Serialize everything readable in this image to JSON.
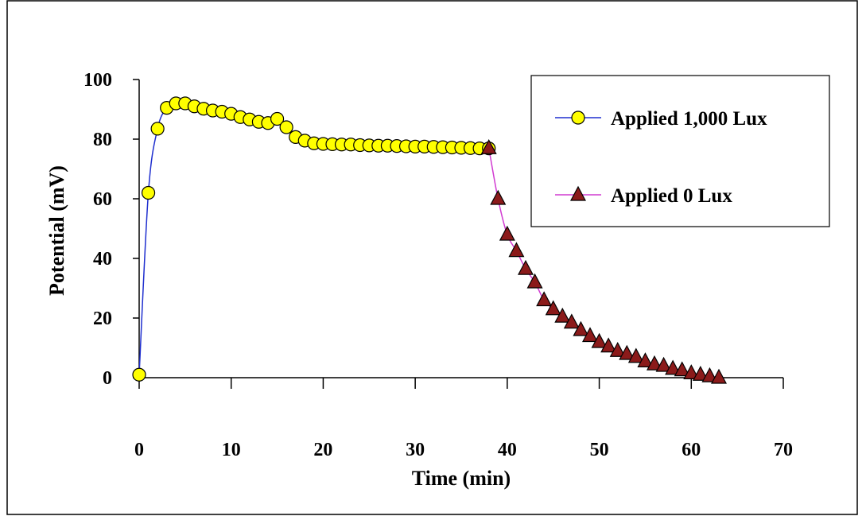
{
  "chart_data": {
    "type": "line",
    "xlabel": "Time (min)",
    "ylabel": "Potential (mV)",
    "xlim": [
      0,
      70
    ],
    "ylim": [
      0,
      100
    ],
    "xticks": [
      "0",
      "10",
      "20",
      "30",
      "40",
      "50",
      "60",
      "70"
    ],
    "yticks": [
      "0",
      "20",
      "40",
      "60",
      "80",
      "100"
    ],
    "grid": false,
    "legend_position": "top-right",
    "series": [
      {
        "name": "Applied 1,000 Lux",
        "marker": "circle",
        "line_color": "#1f2fcf",
        "marker_fill": "#ffff00",
        "marker_stroke": "#000000",
        "x": [
          0,
          1,
          2,
          3,
          4,
          5,
          6,
          7,
          8,
          9,
          10,
          11,
          12,
          13,
          14,
          15,
          16,
          17,
          18,
          19,
          20,
          21,
          22,
          23,
          24,
          25,
          26,
          27,
          28,
          29,
          30,
          31,
          32,
          33,
          34,
          35,
          36,
          37,
          38
        ],
        "y": [
          1,
          62,
          83.5,
          90.5,
          92,
          92,
          91,
          90.2,
          89.6,
          89.2,
          88.5,
          87.4,
          86.6,
          85.8,
          85.4,
          86.8,
          84,
          80.7,
          79.5,
          78.6,
          78.4,
          78.3,
          78.2,
          78.2,
          78,
          77.9,
          77.8,
          77.8,
          77.7,
          77.6,
          77.5,
          77.5,
          77.4,
          77.3,
          77.2,
          77.1,
          77,
          76.9,
          76.9
        ]
      },
      {
        "name": "Applied 0 Lux",
        "marker": "triangle",
        "line_color": "#d13bd1",
        "marker_fill": "#8b1a1a",
        "marker_stroke": "#000000",
        "x": [
          38,
          39,
          40,
          41,
          42,
          43,
          44,
          45,
          46,
          47,
          48,
          49,
          50,
          51,
          52,
          53,
          54,
          55,
          56,
          57,
          58,
          59,
          60,
          61,
          62,
          63
        ],
        "y": [
          77,
          60,
          48,
          42.5,
          36.5,
          32,
          26,
          23,
          20.5,
          18.5,
          16,
          14,
          12,
          10.5,
          9,
          8,
          7,
          5.5,
          4.5,
          4,
          3,
          2.5,
          1.5,
          1,
          0.5,
          0
        ]
      }
    ]
  }
}
